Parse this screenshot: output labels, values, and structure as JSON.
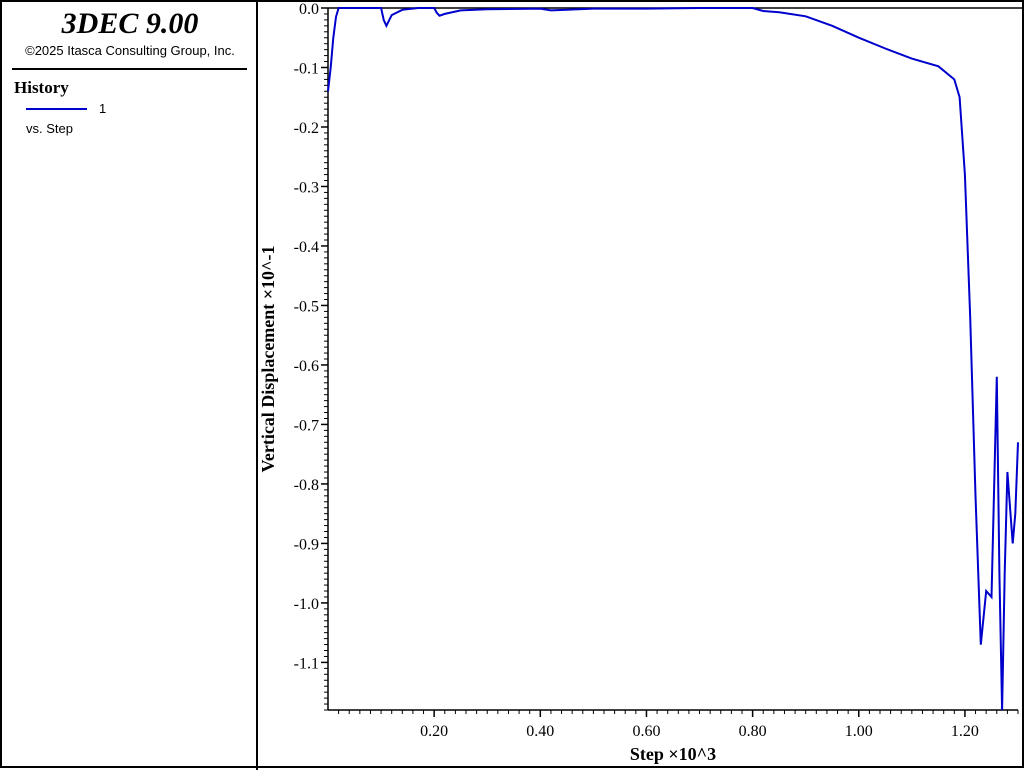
{
  "app": {
    "title": "3DEC 9.00",
    "copyright": "©2025 Itasca Consulting Group, Inc."
  },
  "legend": {
    "heading": "History",
    "series_id": "1",
    "series_sub": "vs. Step",
    "line_color": "#0000cc"
  },
  "chart_data": {
    "type": "line",
    "xlabel": "Step ×10^3",
    "ylabel": "Vertical Displacement ×10^-1",
    "xlim": [
      0.0,
      1.3
    ],
    "ylim": [
      -1.18,
      0.0
    ],
    "x_ticks": [
      0.2,
      0.4,
      0.6,
      0.8,
      1.0,
      1.2
    ],
    "x_tick_labels": [
      "0.20",
      "0.40",
      "0.60",
      "0.80",
      "1.00",
      "1.20"
    ],
    "y_ticks": [
      0.0,
      -0.1,
      -0.2,
      -0.3,
      -0.4,
      -0.5,
      -0.6,
      -0.7,
      -0.8,
      -0.9,
      -1.0,
      -1.1
    ],
    "y_tick_labels": [
      "0.0",
      "-0.1",
      "-0.2",
      "-0.3",
      "-0.4",
      "-0.5",
      "-0.6",
      "-0.7",
      "-0.8",
      "-0.9",
      "-1.0",
      "-1.1"
    ],
    "zero_line": true,
    "grid": false,
    "series": [
      {
        "color": "#0000cc",
        "x": [
          0.0,
          0.005,
          0.01,
          0.015,
          0.02,
          0.03,
          0.05,
          0.08,
          0.1,
          0.105,
          0.11,
          0.12,
          0.14,
          0.17,
          0.2,
          0.205,
          0.21,
          0.22,
          0.25,
          0.3,
          0.4,
          0.42,
          0.45,
          0.5,
          0.6,
          0.7,
          0.75,
          0.8,
          0.82,
          0.85,
          0.9,
          0.95,
          1.0,
          1.05,
          1.1,
          1.15,
          1.18,
          1.19,
          1.2,
          1.21,
          1.22,
          1.23,
          1.24,
          1.25,
          1.26,
          1.265,
          1.27,
          1.275,
          1.28,
          1.29,
          1.295,
          1.3
        ],
        "y": [
          -0.14,
          -0.1,
          -0.05,
          -0.015,
          0.0,
          0.0,
          0.0,
          0.0,
          0.0,
          -0.02,
          -0.03,
          -0.012,
          -0.003,
          0.0,
          0.0,
          -0.008,
          -0.013,
          -0.01,
          -0.004,
          -0.002,
          -0.001,
          -0.004,
          -0.003,
          -0.001,
          -0.001,
          0.0,
          0.0,
          0.0,
          -0.005,
          -0.007,
          -0.014,
          -0.03,
          -0.05,
          -0.068,
          -0.085,
          -0.098,
          -0.12,
          -0.15,
          -0.28,
          -0.52,
          -0.82,
          -1.07,
          -0.98,
          -0.99,
          -0.62,
          -0.95,
          -1.18,
          -0.95,
          -0.78,
          -0.9,
          -0.85,
          -0.73
        ]
      }
    ]
  }
}
